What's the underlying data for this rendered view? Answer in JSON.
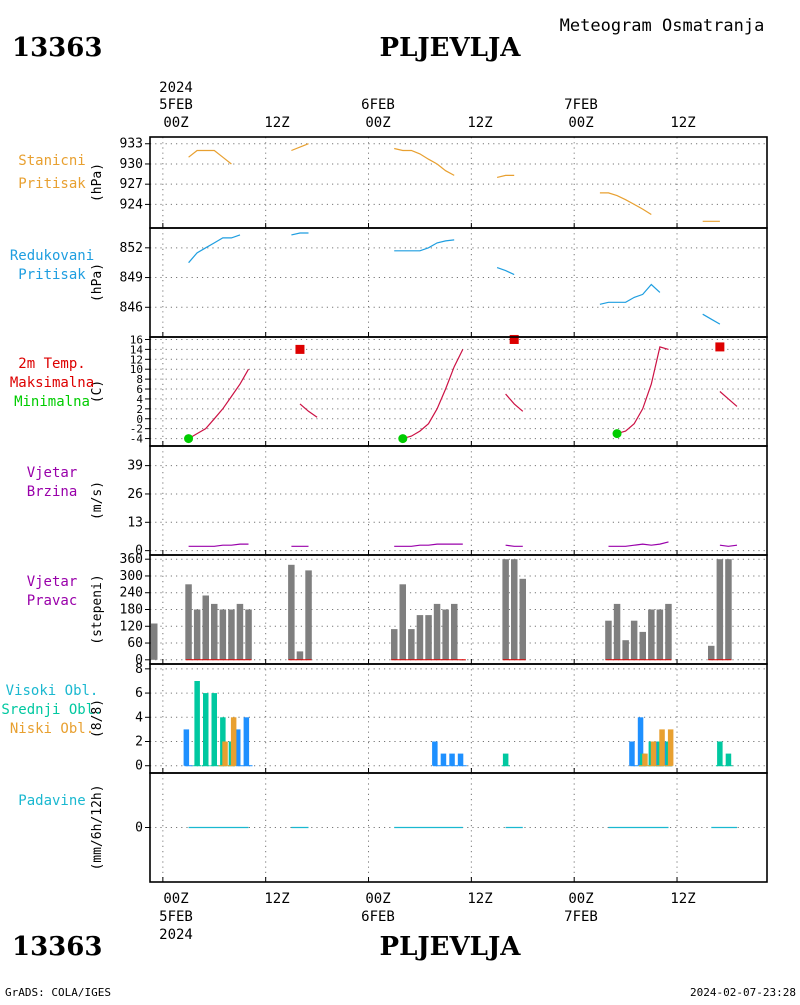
{
  "header": {
    "station_id": "13363",
    "station_name": "PLJEVLJA",
    "title": "Meteogram Osmatranja"
  },
  "footer": {
    "credit": "GrADS: COLA/IGES",
    "timestamp": "2024-02-07-23:28"
  },
  "time_axis": {
    "year": "2024",
    "dates": [
      "5FEB",
      "6FEB",
      "7FEB"
    ],
    "hour_labels": [
      "00Z",
      "12Z",
      "00Z",
      "12Z",
      "00Z",
      "12Z"
    ],
    "hour_values": [
      0,
      12,
      24,
      36,
      48,
      60
    ],
    "range": [
      -1.5,
      70.5
    ]
  },
  "colors": {
    "orange": "#e8a030",
    "blue": "#1e9ee0",
    "red": "#dd0000",
    "crimson": "#cc1144",
    "green": "#00cc00",
    "purple": "#9900aa",
    "gray": "#7f7f7f",
    "teal": "#00c8a0",
    "cyan": "#1ab8d0",
    "dodger": "#1e90ff"
  },
  "chart_data": [
    {
      "id": "stanicni",
      "type": "line",
      "labels": [
        "Stanicni",
        "Pritisak"
      ],
      "unit": "(hPa)",
      "yticks": [
        924,
        927,
        930,
        933
      ],
      "ylim": [
        920.5,
        934
      ],
      "series": [
        {
          "color": "#e8a030",
          "segments": [
            [
              [
                3,
                931.0
              ],
              [
                4,
                932.0
              ],
              [
                5,
                932.0
              ],
              [
                6,
                932.0
              ],
              [
                7,
                931.0
              ],
              [
                8,
                930.0
              ]
            ],
            [
              [
                15,
                932.0
              ],
              [
                16,
                932.5
              ],
              [
                17,
                933.0
              ]
            ],
            [
              [
                27,
                932.3
              ],
              [
                28,
                932.0
              ],
              [
                29,
                932.0
              ],
              [
                30,
                931.5
              ],
              [
                31,
                930.7
              ],
              [
                32,
                930.0
              ],
              [
                33,
                929.0
              ],
              [
                34,
                928.3
              ]
            ],
            [
              [
                39,
                928.0
              ],
              [
                40,
                928.3
              ],
              [
                41,
                928.3
              ]
            ],
            [
              [
                51,
                925.7
              ],
              [
                52,
                925.7
              ],
              [
                53,
                925.3
              ],
              [
                54,
                924.7
              ],
              [
                55,
                924.0
              ],
              [
                56,
                923.3
              ],
              [
                57,
                922.5
              ]
            ],
            [
              [
                63,
                921.5
              ],
              [
                64,
                921.5
              ],
              [
                65,
                921.5
              ]
            ]
          ]
        }
      ]
    },
    {
      "id": "redukovani",
      "type": "line",
      "labels": [
        "Redukovani",
        "Pritisak"
      ],
      "unit": "(hPa)",
      "yticks": [
        846,
        849,
        852
      ],
      "ylim": [
        843,
        854
      ],
      "series": [
        {
          "color": "#1e9ee0",
          "segments": [
            [
              [
                3,
                850.5
              ],
              [
                4,
                851.5
              ],
              [
                5,
                852.0
              ],
              [
                6,
                852.5
              ],
              [
                7,
                853.0
              ],
              [
                8,
                853.0
              ],
              [
                9,
                853.3
              ]
            ],
            [
              [
                15,
                853.3
              ],
              [
                16,
                853.5
              ],
              [
                17,
                853.5
              ]
            ],
            [
              [
                27,
                851.7
              ],
              [
                28,
                851.7
              ],
              [
                29,
                851.7
              ],
              [
                30,
                851.7
              ],
              [
                31,
                852.0
              ],
              [
                32,
                852.5
              ],
              [
                33,
                852.7
              ],
              [
                34,
                852.8
              ]
            ],
            [
              [
                39,
                850.0
              ],
              [
                40,
                849.7
              ],
              [
                41,
                849.3
              ]
            ],
            [
              [
                51,
                846.3
              ],
              [
                52,
                846.5
              ],
              [
                53,
                846.5
              ],
              [
                54,
                846.5
              ],
              [
                55,
                847.0
              ],
              [
                56,
                847.3
              ],
              [
                57,
                848.3
              ],
              [
                58,
                847.5
              ]
            ],
            [
              [
                63,
                845.3
              ],
              [
                64,
                844.8
              ],
              [
                65,
                844.3
              ]
            ]
          ]
        }
      ]
    },
    {
      "id": "temperature",
      "type": "line",
      "labels": [
        "2m Temp.",
        "Maksimalna",
        "Minimalna"
      ],
      "unit": "(C)",
      "yticks": [
        -4,
        -2,
        0,
        2,
        4,
        6,
        8,
        10,
        12,
        14,
        16
      ],
      "ylim": [
        -5.5,
        16.5
      ],
      "series": [
        {
          "name": "2m Temp.",
          "color": "#cc1144",
          "segments": [
            [
              [
                3,
                -4.0
              ],
              [
                4,
                -3.0
              ],
              [
                5,
                -2.0
              ],
              [
                6,
                0.0
              ],
              [
                7,
                2.0
              ],
              [
                8,
                4.5
              ],
              [
                9,
                7.0
              ],
              [
                10,
                10.0
              ]
            ],
            [
              [
                16,
                3.0
              ],
              [
                17,
                1.5
              ],
              [
                18,
                0.3
              ]
            ],
            [
              [
                28,
                -4.0
              ],
              [
                29,
                -3.5
              ],
              [
                30,
                -2.5
              ],
              [
                31,
                -1.0
              ],
              [
                32,
                2.0
              ],
              [
                33,
                6.0
              ],
              [
                34,
                10.5
              ],
              [
                35,
                14.0
              ]
            ],
            [
              [
                40,
                5.0
              ],
              [
                41,
                3.0
              ],
              [
                42,
                1.5
              ]
            ],
            [
              [
                53,
                -3.0
              ],
              [
                54,
                -2.5
              ],
              [
                55,
                -1.0
              ],
              [
                56,
                2.0
              ],
              [
                57,
                7.0
              ],
              [
                58,
                14.5
              ],
              [
                59,
                14.0
              ]
            ],
            [
              [
                65,
                5.5
              ],
              [
                66,
                4.0
              ],
              [
                67,
                2.5
              ]
            ]
          ]
        }
      ],
      "maksimalna": {
        "color": "#dd0000",
        "points": [
          [
            16,
            14.0
          ],
          [
            41,
            16.0
          ],
          [
            65,
            14.5
          ]
        ]
      },
      "minimalna": {
        "color": "#00cc00",
        "points": [
          [
            3,
            -4.0
          ],
          [
            28,
            -4.0
          ],
          [
            53,
            -3.0
          ]
        ]
      }
    },
    {
      "id": "vjetar_brzina",
      "type": "line",
      "labels": [
        "Vjetar",
        "Brzina"
      ],
      "unit": "(m/s)",
      "yticks": [
        0,
        13,
        26,
        39
      ],
      "ylim": [
        -2,
        48
      ],
      "series": [
        {
          "color": "#9900aa",
          "segments": [
            [
              [
                3,
                2.0
              ],
              [
                4,
                2.0
              ],
              [
                5,
                2.0
              ],
              [
                6,
                2.0
              ],
              [
                7,
                2.5
              ],
              [
                8,
                2.5
              ],
              [
                9,
                3.0
              ],
              [
                10,
                3.0
              ]
            ],
            [
              [
                15,
                2.0
              ],
              [
                16,
                2.0
              ],
              [
                17,
                2.0
              ]
            ],
            [
              [
                27,
                2.0
              ],
              [
                28,
                2.0
              ],
              [
                29,
                2.0
              ],
              [
                30,
                2.5
              ],
              [
                31,
                2.5
              ],
              [
                32,
                3.0
              ],
              [
                33,
                3.0
              ],
              [
                34,
                3.0
              ],
              [
                35,
                3.0
              ]
            ],
            [
              [
                40,
                2.5
              ],
              [
                41,
                2.0
              ],
              [
                42,
                2.0
              ]
            ],
            [
              [
                52,
                2.0
              ],
              [
                53,
                2.0
              ],
              [
                54,
                2.0
              ],
              [
                55,
                2.5
              ],
              [
                56,
                3.0
              ],
              [
                57,
                2.5
              ],
              [
                58,
                3.0
              ],
              [
                59,
                4.0
              ]
            ],
            [
              [
                65,
                2.5
              ],
              [
                66,
                2.0
              ],
              [
                67,
                2.5
              ]
            ]
          ]
        }
      ]
    },
    {
      "id": "vjetar_pravac",
      "type": "bar",
      "labels": [
        "Vjetar",
        "Pravac"
      ],
      "unit": "(stepeni)",
      "yticks": [
        0,
        60,
        120,
        180,
        240,
        300,
        360
      ],
      "ylim": [
        -15,
        375
      ],
      "series": [
        {
          "color": "#7f7f7f",
          "x": [
            -1,
            3,
            4,
            5,
            6,
            7,
            8,
            9,
            10,
            15,
            16,
            17,
            27,
            28,
            29,
            30,
            31,
            32,
            33,
            34,
            35,
            40,
            41,
            42,
            52,
            53,
            54,
            55,
            56,
            57,
            58,
            59,
            64,
            65,
            66
          ],
          "values": [
            130,
            270,
            180,
            230,
            200,
            180,
            180,
            200,
            180,
            340,
            30,
            320,
            110,
            270,
            110,
            160,
            160,
            200,
            180,
            200,
            0,
            360,
            360,
            290,
            140,
            200,
            70,
            140,
            100,
            180,
            180,
            200,
            50,
            360,
            360
          ]
        }
      ],
      "baseline": {
        "color": "#dd0000",
        "ranges": [
          [
            3,
            10
          ],
          [
            15,
            17
          ],
          [
            27,
            35
          ],
          [
            40,
            42
          ],
          [
            52,
            59
          ],
          [
            64,
            66
          ]
        ]
      }
    },
    {
      "id": "oblaci",
      "type": "bar",
      "labels": [
        "Visoki Obl.",
        "Srednji Obl.",
        "Niski Obl."
      ],
      "unit": "(8/8)",
      "yticks": [
        0,
        2,
        4,
        6,
        8
      ],
      "ylim": [
        -0.6,
        8.4
      ],
      "series": [
        {
          "name": "Visoki Obl.",
          "color": "#1e90ff",
          "x": [
            3,
            9,
            10,
            32,
            33,
            34,
            35,
            55,
            56,
            58,
            59
          ],
          "values": [
            3,
            3,
            4,
            2,
            1,
            1,
            1,
            2,
            4,
            2,
            2
          ]
        },
        {
          "name": "Srednji Obl.",
          "color": "#00c8a0",
          "x": [
            4,
            5,
            6,
            7,
            8,
            40,
            56,
            57,
            58,
            59,
            65,
            66
          ],
          "values": [
            7,
            6,
            6,
            4,
            2,
            1,
            1,
            2,
            2,
            2,
            2,
            1
          ]
        },
        {
          "name": "Niski Obl.",
          "color": "#e8a030",
          "x": [
            7,
            8,
            56,
            57,
            58,
            59
          ],
          "values": [
            2,
            4,
            1,
            2,
            3,
            3
          ]
        }
      ]
    },
    {
      "id": "padavine",
      "type": "line",
      "labels": [
        "Padavine"
      ],
      "unit": "(mm/6h/12h)",
      "yticks": [
        0
      ],
      "ylim": [
        -5,
        5
      ],
      "series": [
        {
          "color": "#1ab8d0",
          "segments": [
            [
              [
                3,
                0
              ],
              [
                10,
                0
              ]
            ],
            [
              [
                15,
                0
              ],
              [
                17,
                0
              ]
            ],
            [
              [
                27,
                0
              ],
              [
                35,
                0
              ]
            ],
            [
              [
                40,
                0
              ],
              [
                42,
                0
              ]
            ],
            [
              [
                52,
                0
              ],
              [
                59,
                0
              ]
            ],
            [
              [
                64,
                0
              ],
              [
                67,
                0
              ]
            ]
          ]
        }
      ]
    }
  ]
}
